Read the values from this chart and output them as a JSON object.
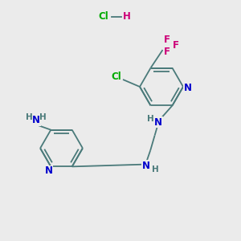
{
  "background_color": "#ebebeb",
  "bond_color": "#4a7a7a",
  "N_color": "#0000cc",
  "Cl_color": "#00aa00",
  "F_color": "#cc0077",
  "H_color": "#4a7a7a",
  "figsize": [
    3.0,
    3.0
  ],
  "dpi": 100,
  "xlim": [
    0,
    10
  ],
  "ylim": [
    0,
    10
  ]
}
